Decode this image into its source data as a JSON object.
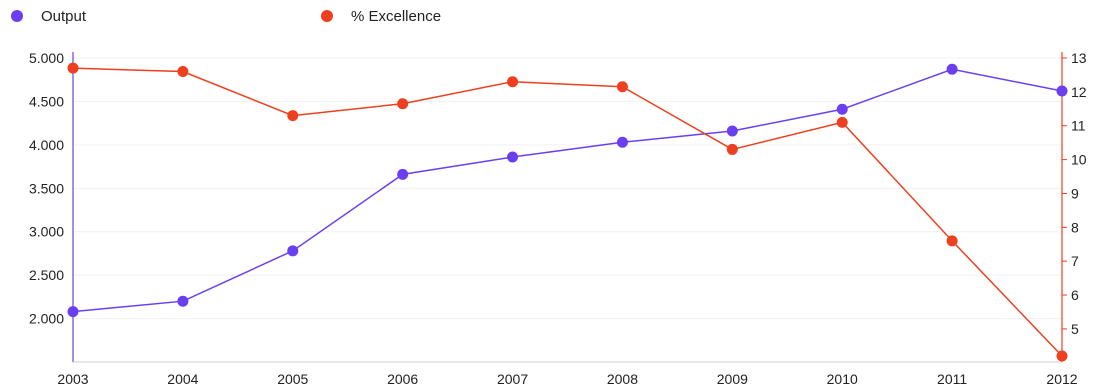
{
  "chart_data": {
    "type": "line",
    "title": "",
    "xlabel": "",
    "x": [
      "2003",
      "2004",
      "2005",
      "2006",
      "2007",
      "2008",
      "2009",
      "2010",
      "2011",
      "2012"
    ],
    "series": [
      {
        "name": "Output",
        "axis": "left",
        "color": "#6a3ff0",
        "values": [
          2080,
          2200,
          2780,
          3660,
          3860,
          4030,
          4160,
          4410,
          4870,
          4620
        ]
      },
      {
        "name": "% Excellence",
        "axis": "right",
        "color": "#ee3f1e",
        "values": [
          12.7,
          12.6,
          11.3,
          11.65,
          12.3,
          12.15,
          10.3,
          11.1,
          7.6,
          4.2
        ]
      }
    ],
    "y_left": {
      "ticks": [
        2000,
        2500,
        3000,
        3500,
        4000,
        4500,
        5000
      ],
      "tick_labels": [
        "2.000",
        "2.500",
        "3.000",
        "3.500",
        "4.000",
        "4.500",
        "5.000"
      ],
      "ylim": [
        1500,
        5000
      ],
      "color": "#6a3ff0"
    },
    "y_right": {
      "ticks": [
        5,
        6,
        7,
        8,
        9,
        10,
        11,
        12,
        13
      ],
      "tick_labels": [
        "5",
        "6",
        "7",
        "8",
        "9",
        "10",
        "11",
        "12",
        "13"
      ],
      "ylim": [
        4.2,
        13
      ],
      "color": "#ee3f1e"
    },
    "grid": true,
    "legend": "top-left"
  }
}
